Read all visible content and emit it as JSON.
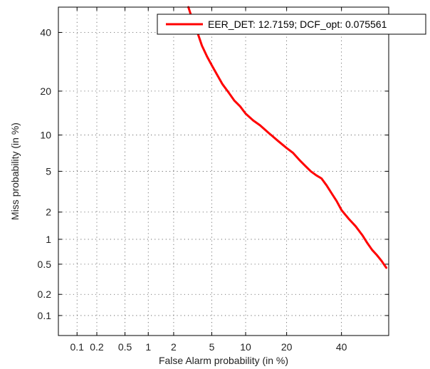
{
  "chart_data": {
    "type": "line",
    "xlabel": "False Alarm probability (in %)",
    "ylabel": "Miss probability (in %)",
    "x_scale": "probit",
    "y_scale": "probit",
    "xlim": [
      0.05,
      60
    ],
    "ylim": [
      0.05,
      50
    ],
    "x_ticks": [
      0.1,
      0.2,
      0.5,
      1,
      2,
      5,
      10,
      20,
      40
    ],
    "x_tick_labels": [
      "0.1",
      "0.2",
      "0.5",
      "1",
      "2",
      "5",
      "10",
      "20",
      "40"
    ],
    "y_ticks": [
      0.1,
      0.2,
      0.5,
      1,
      2,
      5,
      10,
      20,
      40
    ],
    "y_tick_labels": [
      "0.1",
      "0.2",
      "0.5",
      "1",
      "2",
      "5",
      "10",
      "20",
      "40"
    ],
    "grid": true,
    "legend_position": "top-right",
    "series": [
      {
        "name": "EER_DET: 12.7159; DCF_opt: 0.075561",
        "color": "#ff0000",
        "x": [
          2.9,
          3.2,
          3.6,
          4.0,
          4.5,
          5.0,
          5.6,
          6.3,
          7.2,
          8.0,
          9.0,
          10.0,
          11.5,
          13.0,
          15.0,
          17.5,
          20.0,
          22.0,
          24.0,
          26.0,
          28.0,
          30.0,
          32.0,
          34.0,
          36.0,
          38.0,
          40.0,
          43.0,
          46.0,
          49.0,
          51.0,
          53.0,
          55.0,
          57.0,
          59.0
        ],
        "y": [
          50.0,
          45.0,
          40.0,
          35.0,
          31.0,
          28.0,
          25.0,
          22.0,
          19.5,
          17.5,
          16.0,
          14.3,
          12.8,
          11.8,
          10.4,
          9.0,
          7.9,
          7.2,
          6.3,
          5.6,
          5.0,
          4.6,
          4.3,
          3.7,
          3.1,
          2.6,
          2.1,
          1.7,
          1.4,
          1.1,
          0.9,
          0.75,
          0.65,
          0.55,
          0.45
        ]
      }
    ]
  }
}
